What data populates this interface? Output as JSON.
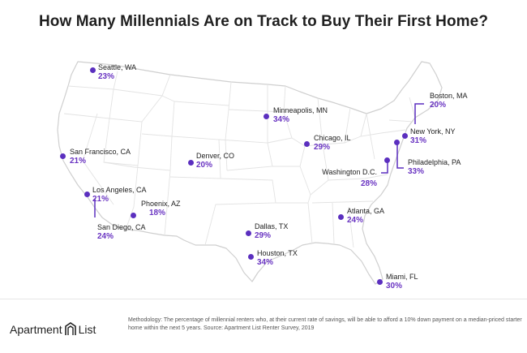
{
  "title": "How Many Millennials Are on Track to Buy Their First Home?",
  "colors": {
    "accent": "#5b2fbf",
    "map_fill": "#ffffff",
    "map_border": "#cfcfcf",
    "percent": "#6a35c2"
  },
  "cities": [
    {
      "name": "Seattle, WA",
      "pct": "23%"
    },
    {
      "name": "Boston, MA",
      "pct": "20%"
    },
    {
      "name": "Minneapolis, MN",
      "pct": "34%"
    },
    {
      "name": "New York, NY",
      "pct": "31%"
    },
    {
      "name": "Chicago, IL",
      "pct": "29%"
    },
    {
      "name": "San Francisco, CA",
      "pct": "21%"
    },
    {
      "name": "Denver, CO",
      "pct": "20%"
    },
    {
      "name": "Philadelphia, PA",
      "pct": "33%"
    },
    {
      "name": "Washington D.C.",
      "pct": "28%"
    },
    {
      "name": "Los Angeles, CA",
      "pct": "21%"
    },
    {
      "name": "Phoenix, AZ",
      "pct": "18%"
    },
    {
      "name": "Atlanta, GA",
      "pct": "24%"
    },
    {
      "name": "San Diego, CA",
      "pct": "24%"
    },
    {
      "name": "Dallas, TX",
      "pct": "29%"
    },
    {
      "name": "Houston, TX",
      "pct": "34%"
    },
    {
      "name": "Miami, FL",
      "pct": "30%"
    }
  ],
  "footer": {
    "brand_left": "Apartment",
    "brand_right": "List",
    "logo_icon": "apartment-list-logo-icon",
    "methodology": "Methodology: The percentage of millennial renters who, at their current rate of savings, will be able to afford a 10% down payment on a median-priced starter home within the next 5 years. Source: Apartment List Renter Survey, 2019"
  }
}
